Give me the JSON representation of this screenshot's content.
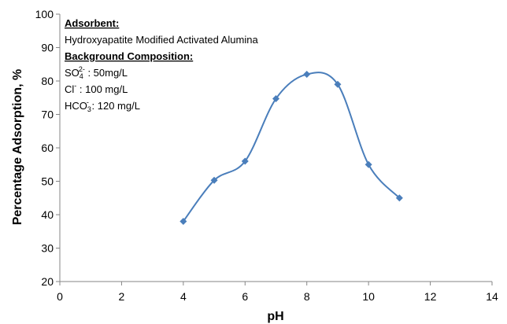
{
  "chart_data": {
    "type": "scatter",
    "title": "",
    "xlabel": "pH",
    "ylabel": "Percentage Adsorption, %",
    "xlim": [
      0,
      14
    ],
    "ylim": [
      20,
      100
    ],
    "xticks": [
      0,
      2,
      4,
      6,
      8,
      10,
      12,
      14
    ],
    "yticks": [
      20,
      30,
      40,
      50,
      60,
      70,
      80,
      90,
      100
    ],
    "grid": false,
    "legend": "none",
    "series": [
      {
        "color": "#4a7ebb",
        "marker": "diamond",
        "line": "smooth",
        "x": [
          4,
          5,
          6,
          7,
          8,
          9,
          10,
          11
        ],
        "y": [
          38,
          50.3,
          56,
          74.7,
          82,
          79,
          55,
          45
        ]
      }
    ],
    "annotation": {
      "adsorbent_heading": "Adsorbent:",
      "adsorbent": "Hydroxyapatite Modified Activated Alumina",
      "background_heading": "Background Composition:",
      "lines": [
        {
          "ion": "SO",
          "sub": "4",
          "sup": "2-",
          "text": " : 50mg/L"
        },
        {
          "ion": "Cl",
          "sub": "",
          "sup": "-",
          "text": " : 100 mg/L"
        },
        {
          "ion": "HCO",
          "sub": "3",
          "sup": "-",
          "text": " : 120 mg/L"
        }
      ]
    }
  }
}
